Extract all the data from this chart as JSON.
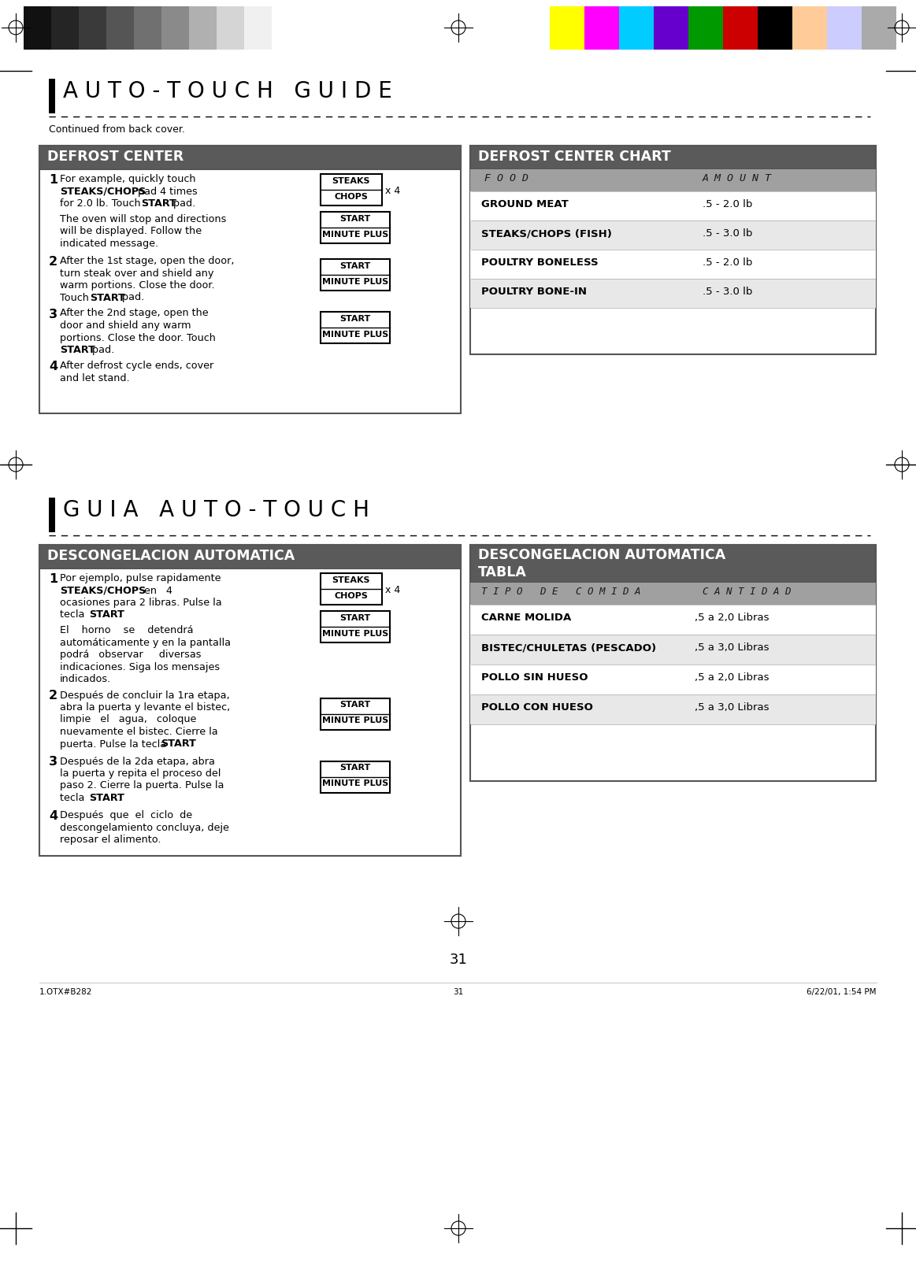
{
  "page_bg": "#ffffff",
  "page_number": "31",
  "footer_left": "1.OTX#B282",
  "footer_center": "31",
  "footer_right": "6/22/01, 1:54 PM",
  "section1_title": "A U T O - T O U C H   G U I D E",
  "section1_subtitle": "Continued from back cover.",
  "section1_box1_title": "DEFROST CENTER",
  "section1_chart_title": "DEFROST CENTER CHART",
  "section1_chart_col1": "F O O D",
  "section1_chart_col2": "A M O U N T",
  "section1_chart_rows": [
    {
      "food": "GROUND MEAT",
      "amount": ".5 - 2.0 lb",
      "shaded": false
    },
    {
      "food": "STEAKS/CHOPS (FISH)",
      "amount": ".5 - 3.0 lb",
      "shaded": true
    },
    {
      "food": "POULTRY BONELESS",
      "amount": ".5 - 2.0 lb",
      "shaded": false
    },
    {
      "food": "POULTRY BONE-IN",
      "amount": ".5 - 3.0 lb",
      "shaded": true
    }
  ],
  "section2_title": "G U I A   A U T O - T O U C H",
  "section2_box1_title": "DESCONGELACION AUTOMATICA",
  "section2_chart_title_line1": "DESCONGELACION AUTOMATICA",
  "section2_chart_title_line2": "TABLA",
  "section2_chart_col1": "T I P O   D E   C O M I D A",
  "section2_chart_col2": "C A N T I D A D",
  "section2_chart_rows": [
    {
      "food": "CARNE MOLIDA",
      "amount": ",5 a 2,0 Libras",
      "shaded": false
    },
    {
      "food": "BISTEC/CHULETAS (PESCADO)",
      "amount": ",5 a 3,0 Libras",
      "shaded": true
    },
    {
      "food": "POLLO SIN HUESO",
      "amount": ",5 a 2,0 Libras",
      "shaded": false
    },
    {
      "food": "POLLO CON HUESO",
      "amount": ",5 a 3,0 Libras",
      "shaded": true
    }
  ],
  "header_dark": "#555555",
  "box_header_color": "#5a5a5a",
  "col_header_color": "#a0a0a0",
  "row_shade": "#e8e8e8"
}
